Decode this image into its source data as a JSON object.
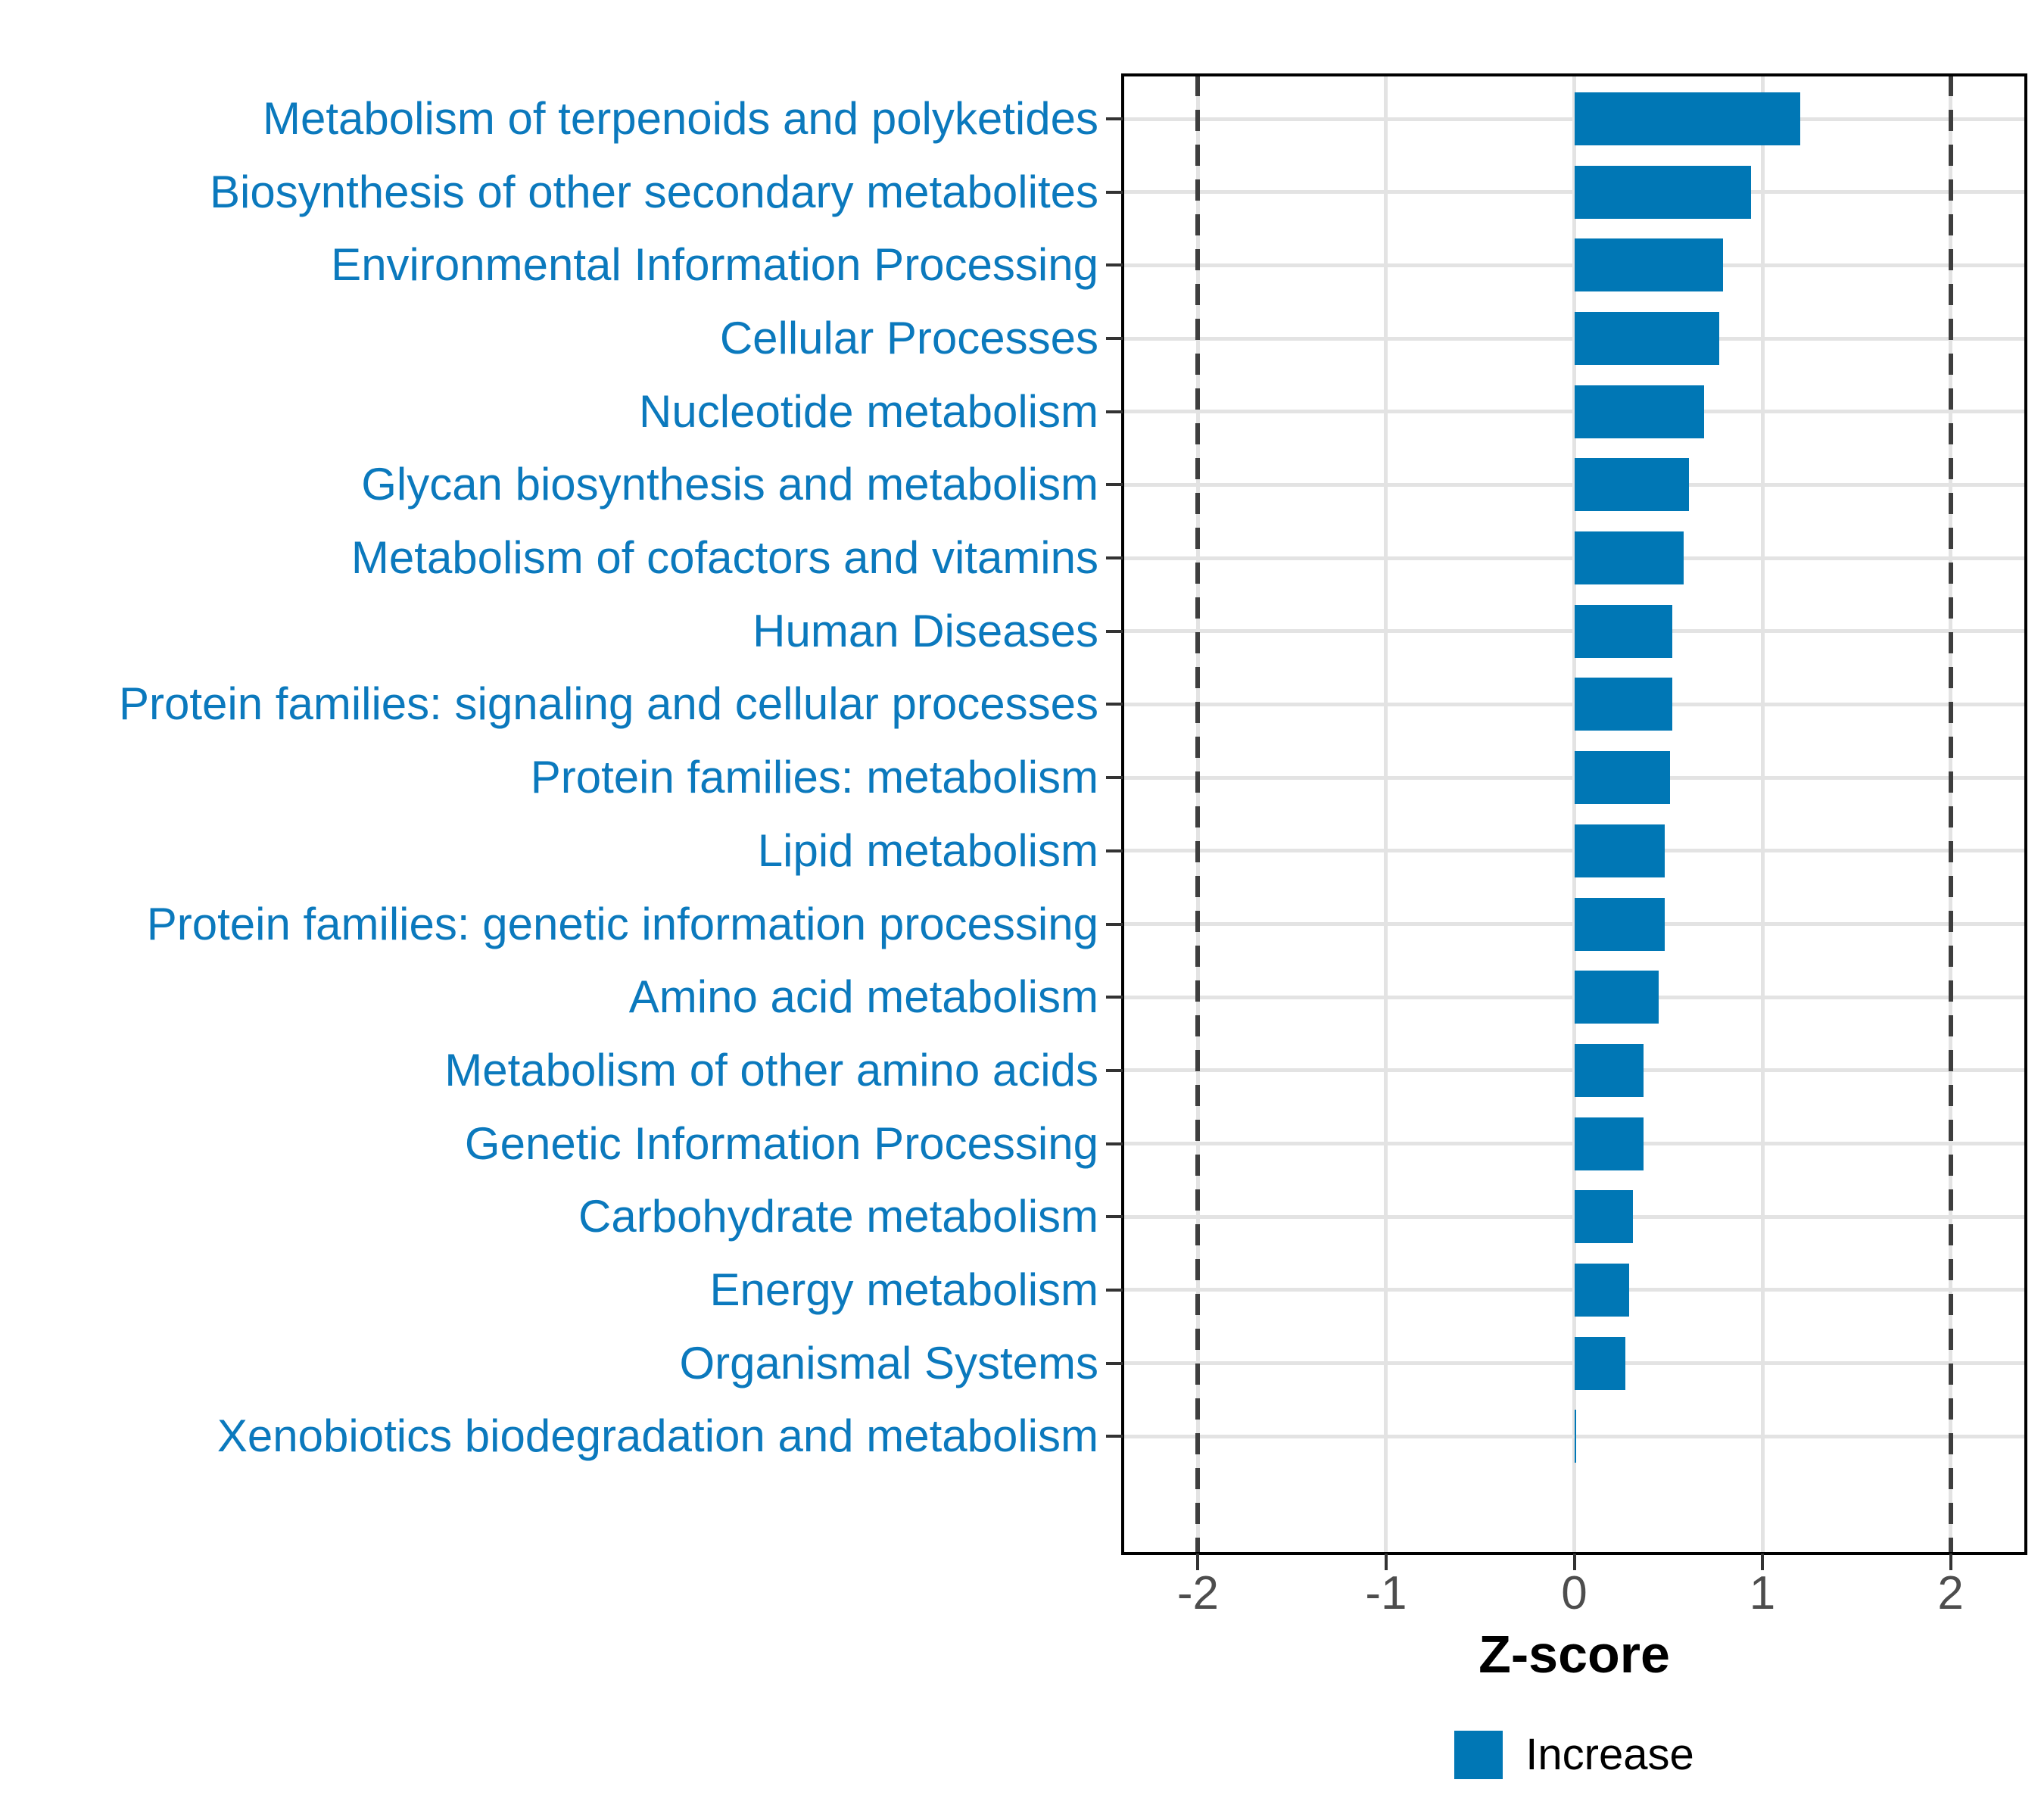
{
  "figure": {
    "xlabel": "Z-score",
    "legend": {
      "position": "bottom",
      "items": [
        {
          "label": "Increase",
          "color": "#0077B5"
        }
      ]
    }
  },
  "chart_data": {
    "type": "bar",
    "orientation": "horizontal",
    "title": "",
    "xlabel": "Z-score",
    "ylabel": "",
    "xlim": [
      -2.4,
      2.4
    ],
    "x_ticks": [
      "-2",
      "-1",
      "0",
      "1",
      "2"
    ],
    "x_tick_values": [
      -2,
      -1,
      0,
      1,
      2
    ],
    "reference_lines": [
      -2,
      2
    ],
    "reference_line_style": "dashed",
    "grid": true,
    "legend_position": "bottom",
    "bar_color": "#0077B5",
    "label_color": "#0B79BD",
    "categories": [
      "Metabolism of terpenoids and polyketides",
      "Biosynthesis of other secondary metabolites",
      "Environmental Information Processing",
      "Cellular Processes",
      "Nucleotide metabolism",
      "Glycan biosynthesis and metabolism",
      "Metabolism of cofactors and vitamins",
      "Human Diseases",
      "Protein families: signaling and cellular processes",
      "Protein families: metabolism",
      "Lipid metabolism",
      "Protein families: genetic information processing",
      "Amino acid metabolism",
      "Metabolism of other amino acids",
      "Genetic Information Processing",
      "Carbohydrate metabolism",
      "Energy metabolism",
      "Organismal Systems",
      "Xenobiotics biodegradation and metabolism"
    ],
    "values": [
      1.2,
      0.94,
      0.79,
      0.77,
      0.69,
      0.61,
      0.58,
      0.52,
      0.52,
      0.51,
      0.48,
      0.48,
      0.45,
      0.37,
      0.37,
      0.31,
      0.29,
      0.27,
      0.01
    ],
    "series_name": "Increase"
  }
}
